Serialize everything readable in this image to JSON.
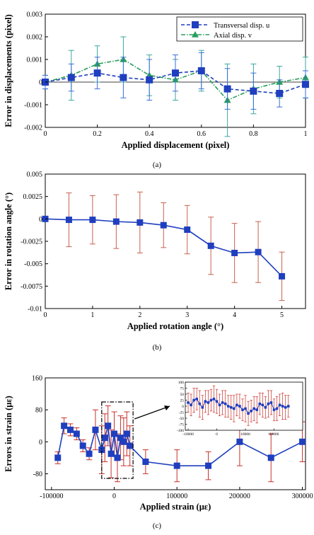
{
  "chart_data": [
    {
      "type": "line",
      "panel_label": "(a)",
      "xlabel": "Applied displacement (pixel)",
      "ylabel": "Error in displacements (pixel)",
      "xlim": [
        0,
        1
      ],
      "ylim": [
        -0.002,
        0.003
      ],
      "xticks": [
        0,
        0.2,
        0.4,
        0.6,
        0.8,
        1
      ],
      "xtick_labels": [
        "0",
        "0.2",
        "0.4",
        "0.6",
        "0.8",
        "1"
      ],
      "yticks": [
        -0.002,
        -0.001,
        0,
        0.001,
        0.002,
        0.003
      ],
      "ytick_labels": [
        "-0.002",
        "-0.001",
        "0",
        "0.001",
        "0.002",
        "0.003"
      ],
      "legend_position": "top-right",
      "x": [
        0,
        0.1,
        0.2,
        0.3,
        0.4,
        0.5,
        0.6,
        0.7,
        0.8,
        0.9,
        1.0
      ],
      "series": [
        {
          "name": "Transversal disp. u",
          "color": "#1f3fbf",
          "marker": "square",
          "values": [
            0.0,
            0.0002,
            0.0004,
            0.0002,
            0.0001,
            0.0004,
            0.0005,
            -0.0003,
            -0.0004,
            -0.0005,
            -0.0001
          ],
          "err": [
            0.0003,
            0.0006,
            0.0007,
            0.0009,
            0.0009,
            0.0008,
            0.0008,
            0.0009,
            0.0008,
            0.0006,
            0.0006
          ]
        },
        {
          "name": "Axial disp. v",
          "color": "#2a9d5c",
          "marker": "triangle",
          "values": [
            0.0,
            0.0003,
            0.0008,
            0.001,
            0.0003,
            0.0001,
            0.0005,
            -0.0008,
            -0.0003,
            0.0,
            0.0002
          ],
          "err": [
            0.0003,
            0.0011,
            0.0008,
            0.001,
            0.0009,
            0.0009,
            0.0009,
            0.0016,
            0.0011,
            0.0007,
            0.0009
          ]
        }
      ]
    },
    {
      "type": "line",
      "panel_label": "(b)",
      "xlabel": "Applied rotation angle (°)",
      "ylabel": "Error in rotation angle (°)",
      "xlim": [
        0,
        5.5
      ],
      "ylim": [
        -0.01,
        0.005
      ],
      "xticks": [
        0,
        1,
        2,
        3,
        4,
        5
      ],
      "xtick_labels": [
        "0",
        "1",
        "2",
        "3",
        "4",
        "5"
      ],
      "yticks": [
        -0.01,
        -0.0075,
        -0.005,
        -0.0025,
        0,
        0.0025,
        0.005
      ],
      "ytick_labels": [
        "-0.01",
        "-0.0075",
        "-0.005",
        "-0.0025",
        "0",
        "0.0025",
        "0.005"
      ],
      "x": [
        0,
        0.5,
        1.0,
        1.5,
        2.0,
        2.5,
        3.0,
        3.5,
        4.0,
        4.5,
        5.0
      ],
      "series": [
        {
          "color": "#1f3fbf",
          "marker": "square",
          "values": [
            0.0,
            -0.0001,
            -0.0001,
            -0.0003,
            -0.0004,
            -0.0007,
            -0.0012,
            -0.003,
            -0.0038,
            -0.0037,
            -0.0064
          ],
          "err": [
            0.0002,
            0.003,
            0.0027,
            0.003,
            0.0034,
            0.0025,
            0.0027,
            0.0032,
            0.0033,
            0.0034,
            0.0027
          ]
        }
      ]
    },
    {
      "type": "line",
      "panel_label": "(c)",
      "xlabel": "Applied strain (με)",
      "ylabel": "Errors in strain (με)",
      "xlim": [
        -110000,
        305000
      ],
      "ylim": [
        -120,
        160
      ],
      "xticks": [
        -100000,
        0,
        100000,
        200000,
        300000
      ],
      "xtick_labels": [
        "-100000",
        "0",
        "100000",
        "200000",
        "300000"
      ],
      "yticks": [
        -80,
        0,
        80,
        160
      ],
      "ytick_labels": [
        "-80",
        "0",
        "80",
        "160"
      ],
      "x": [
        -90000,
        -80000,
        -70000,
        -60000,
        -50000,
        -40000,
        -30000,
        -20000,
        -15000,
        -10000,
        -5000,
        0,
        5000,
        10000,
        15000,
        20000,
        25000,
        50000,
        100000,
        150000,
        200000,
        250000,
        300000
      ],
      "series": [
        {
          "color": "#1f3fbf",
          "marker": "square",
          "values": [
            -40,
            40,
            30,
            20,
            -10,
            -30,
            30,
            -20,
            10,
            40,
            -30,
            20,
            -40,
            10,
            0,
            20,
            -10,
            -50,
            -60,
            -60,
            0,
            -40,
            0
          ],
          "err": [
            15,
            20,
            15,
            15,
            15,
            15,
            50,
            60,
            60,
            50,
            60,
            55,
            60,
            55,
            60,
            55,
            50,
            30,
            40,
            35,
            60,
            60,
            50
          ]
        }
      ],
      "highlight_region": [
        -20000,
        30000
      ],
      "inset": {
        "xlim": [
          -11000,
          30000
        ],
        "ylim": [
          -100,
          100
        ],
        "xticks": [
          -10000,
          0,
          10000,
          20000
        ],
        "xtick_labels": [
          "-10000",
          "0",
          "10000",
          "20000"
        ],
        "yticks": [
          -100,
          -75,
          -50,
          -25,
          0,
          25,
          50,
          75,
          100
        ],
        "ytick_labels": [
          "-100",
          "-75",
          "-50",
          "-25",
          "0",
          "25",
          "50",
          "75",
          "100"
        ],
        "x": [
          -10000,
          -9000,
          -8000,
          -7000,
          -6000,
          -5000,
          -4000,
          -3000,
          -2000,
          -1000,
          0,
          1000,
          2000,
          3000,
          4000,
          5000,
          6000,
          7000,
          8000,
          9000,
          10000,
          11000,
          12000,
          13000,
          14000,
          15000,
          16000,
          17000,
          18000,
          19000,
          20000,
          21000,
          22000,
          23000,
          24000,
          25000
        ],
        "values": [
          15,
          5,
          25,
          30,
          10,
          -5,
          20,
          15,
          25,
          30,
          20,
          5,
          15,
          10,
          0,
          -5,
          -10,
          5,
          0,
          -15,
          -10,
          -30,
          -20,
          -10,
          -15,
          10,
          5,
          -5,
          10,
          15,
          -15,
          -10,
          5,
          0,
          -5,
          0
        ],
        "err": [
          40,
          45,
          50,
          45,
          55,
          50,
          45,
          50,
          45,
          55,
          50,
          45,
          50,
          55,
          45,
          50,
          55,
          45,
          50,
          45,
          55,
          50,
          45,
          50,
          55,
          45,
          50,
          45,
          55,
          50,
          45,
          50,
          45,
          55,
          50,
          45
        ]
      }
    }
  ]
}
